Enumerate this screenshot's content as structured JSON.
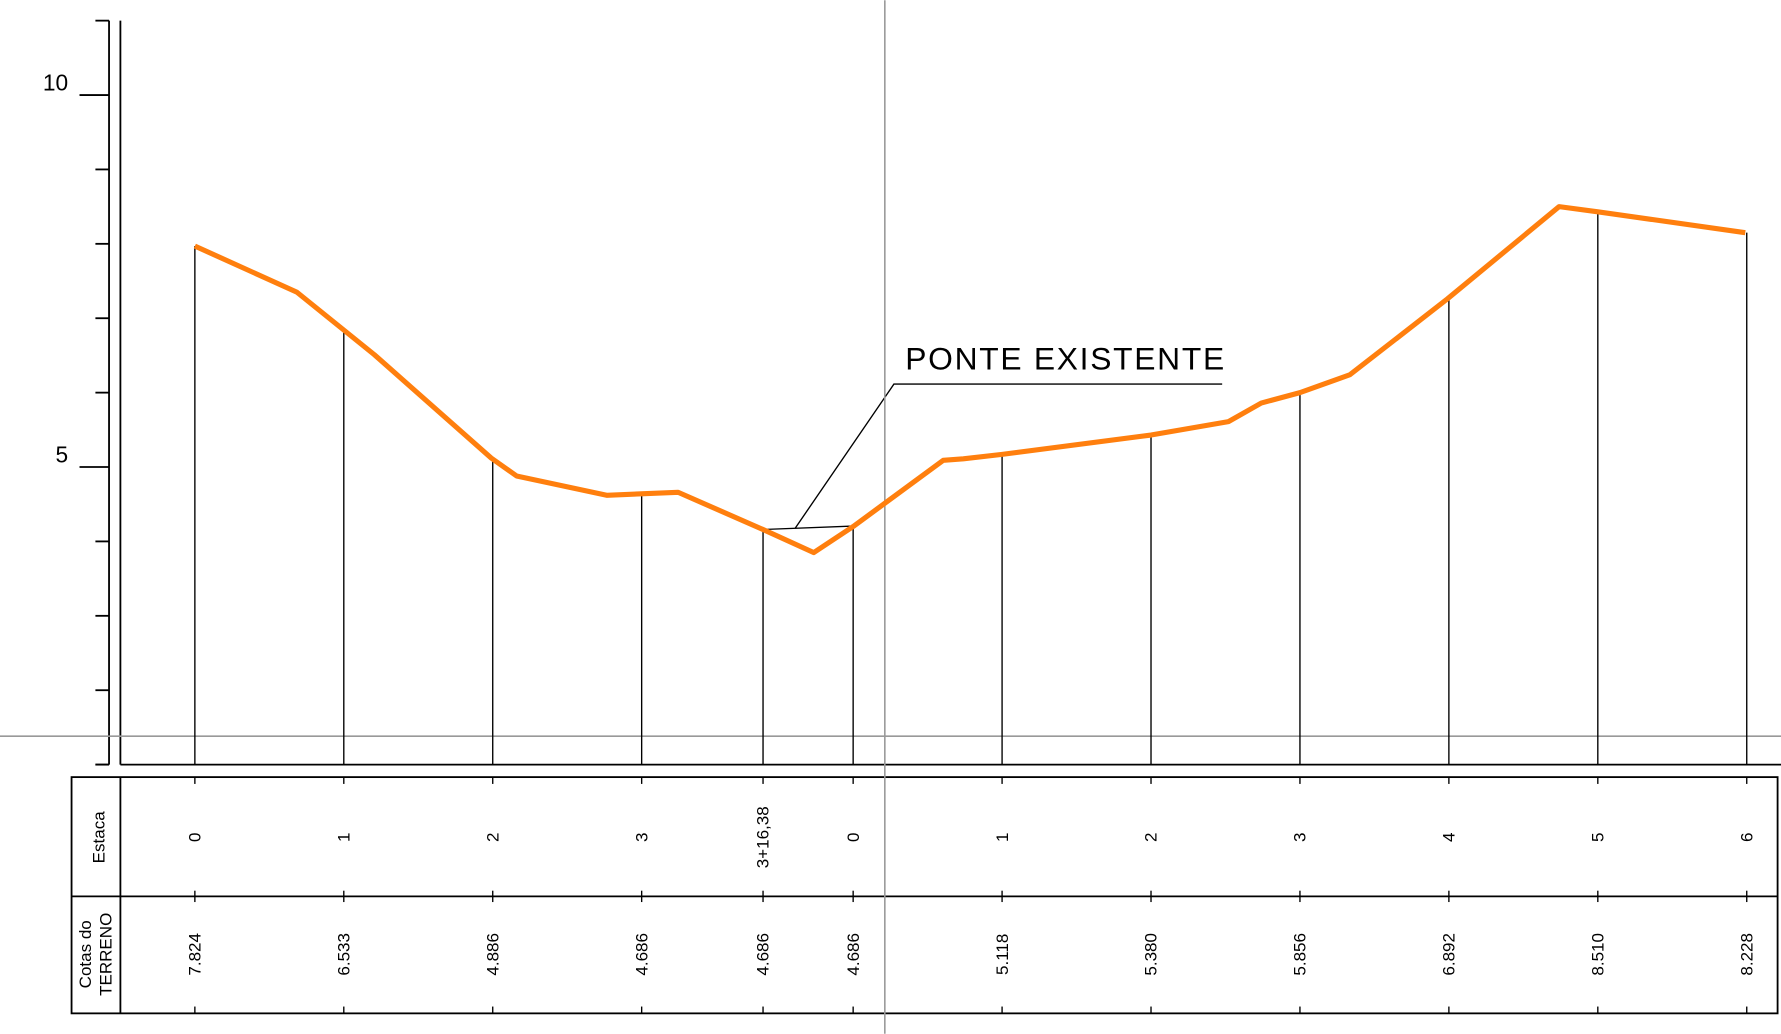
{
  "chart_data": {
    "type": "line",
    "annotation": "PONTE EXISTENTE",
    "xlim": [
      -10,
      213
    ],
    "ylim": [
      1,
      11
    ],
    "yticks": [
      5,
      10
    ],
    "yminor_ticks": [
      1,
      2,
      3,
      4,
      6,
      7,
      8,
      9
    ],
    "series": [
      {
        "color": "#ff7f0e",
        "x": [
          0,
          13.7,
          24.1,
          39.8,
          43.2,
          55.3,
          64.9,
          76.3,
          83.1,
          88.4,
          100.5,
          103.2,
          108.4,
          128.4,
          138.8,
          143.2,
          148.4,
          155.1,
          168.2,
          183.2,
          188.4,
          208.2
        ],
        "values": [
          7.97,
          7.35,
          6.51,
          5.12,
          4.88,
          4.62,
          4.66,
          4.16,
          3.85,
          4.2,
          5.09,
          5.11,
          5.17,
          5.43,
          5.61,
          5.86,
          6.0,
          6.24,
          7.26,
          8.5,
          8.43,
          8.15
        ]
      }
    ],
    "table": {
      "row_labels": [
        "Estaca",
        "Cotas do",
        "TERRENO"
      ],
      "station_x": [
        0,
        20,
        40,
        60,
        76.3,
        88.4,
        108.4,
        128.4,
        148.4,
        168.4,
        188.4,
        208.4
      ],
      "estaca": [
        "0",
        "1",
        "2",
        "3",
        "3+16,38",
        "0",
        "1",
        "2",
        "3",
        "4",
        "5",
        "6"
      ],
      "cotas": [
        "7.824",
        "6.533",
        "4.886",
        "4.686",
        "4.686",
        "4.686",
        "5.118",
        "5.380",
        "5.856",
        "6.892",
        "8.510",
        "8.228"
      ]
    }
  }
}
